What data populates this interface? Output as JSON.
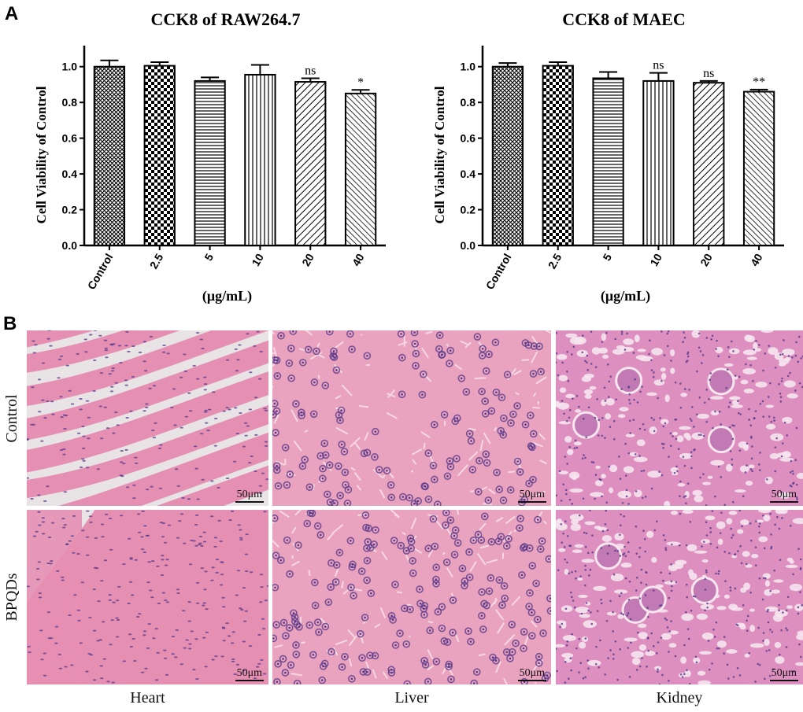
{
  "panel_a_letter": "A",
  "panel_b_letter": "B",
  "chart_data": [
    {
      "type": "bar",
      "title": "CCK8 of RAW264.7",
      "ylabel": "Cell Viability of Control",
      "xlabel": "(μg/mL)",
      "categories": [
        "Control",
        "2.5",
        "5",
        "10",
        "20",
        "40"
      ],
      "values": [
        1.0,
        1.005,
        0.92,
        0.955,
        0.915,
        0.85
      ],
      "errors": [
        0.035,
        0.02,
        0.02,
        0.055,
        0.02,
        0.02
      ],
      "annotations": [
        "",
        "",
        "",
        "",
        "ns",
        "*"
      ],
      "ylim": [
        0,
        1.1
      ],
      "yticks": [
        "0.0",
        "0.2",
        "0.4",
        "0.6",
        "0.8",
        "1.0"
      ],
      "patterns": [
        "crosshatch",
        "checker",
        "hlines",
        "vlines",
        "diag",
        "diag-dense"
      ]
    },
    {
      "type": "bar",
      "title": "CCK8 of MAEC",
      "ylabel": "Cell Viability of Control",
      "xlabel": "(μg/mL)",
      "categories": [
        "Control",
        "2.5",
        "5",
        "10",
        "20",
        "40"
      ],
      "values": [
        1.0,
        1.005,
        0.935,
        0.92,
        0.91,
        0.86
      ],
      "errors": [
        0.02,
        0.02,
        0.035,
        0.045,
        0.01,
        0.012
      ],
      "annotations": [
        "",
        "",
        "",
        "ns",
        "ns",
        "**"
      ],
      "ylim": [
        0,
        1.1
      ],
      "yticks": [
        "0.0",
        "0.2",
        "0.4",
        "0.6",
        "0.8",
        "1.0"
      ],
      "patterns": [
        "crosshatch",
        "checker",
        "hlines",
        "vlines",
        "diag",
        "diag-dense"
      ]
    }
  ],
  "histology": {
    "row_labels": [
      "Control",
      "BPQDs"
    ],
    "col_labels": [
      "Heart",
      "Liver",
      "Kidney"
    ],
    "scale_bar": "50μm",
    "colors": {
      "tissue_pink": "#e58fb3",
      "nuclei": "#5a3a8a",
      "background_gray": "#e8e4e6",
      "kidney_lumen": "#f6e6ee"
    }
  }
}
